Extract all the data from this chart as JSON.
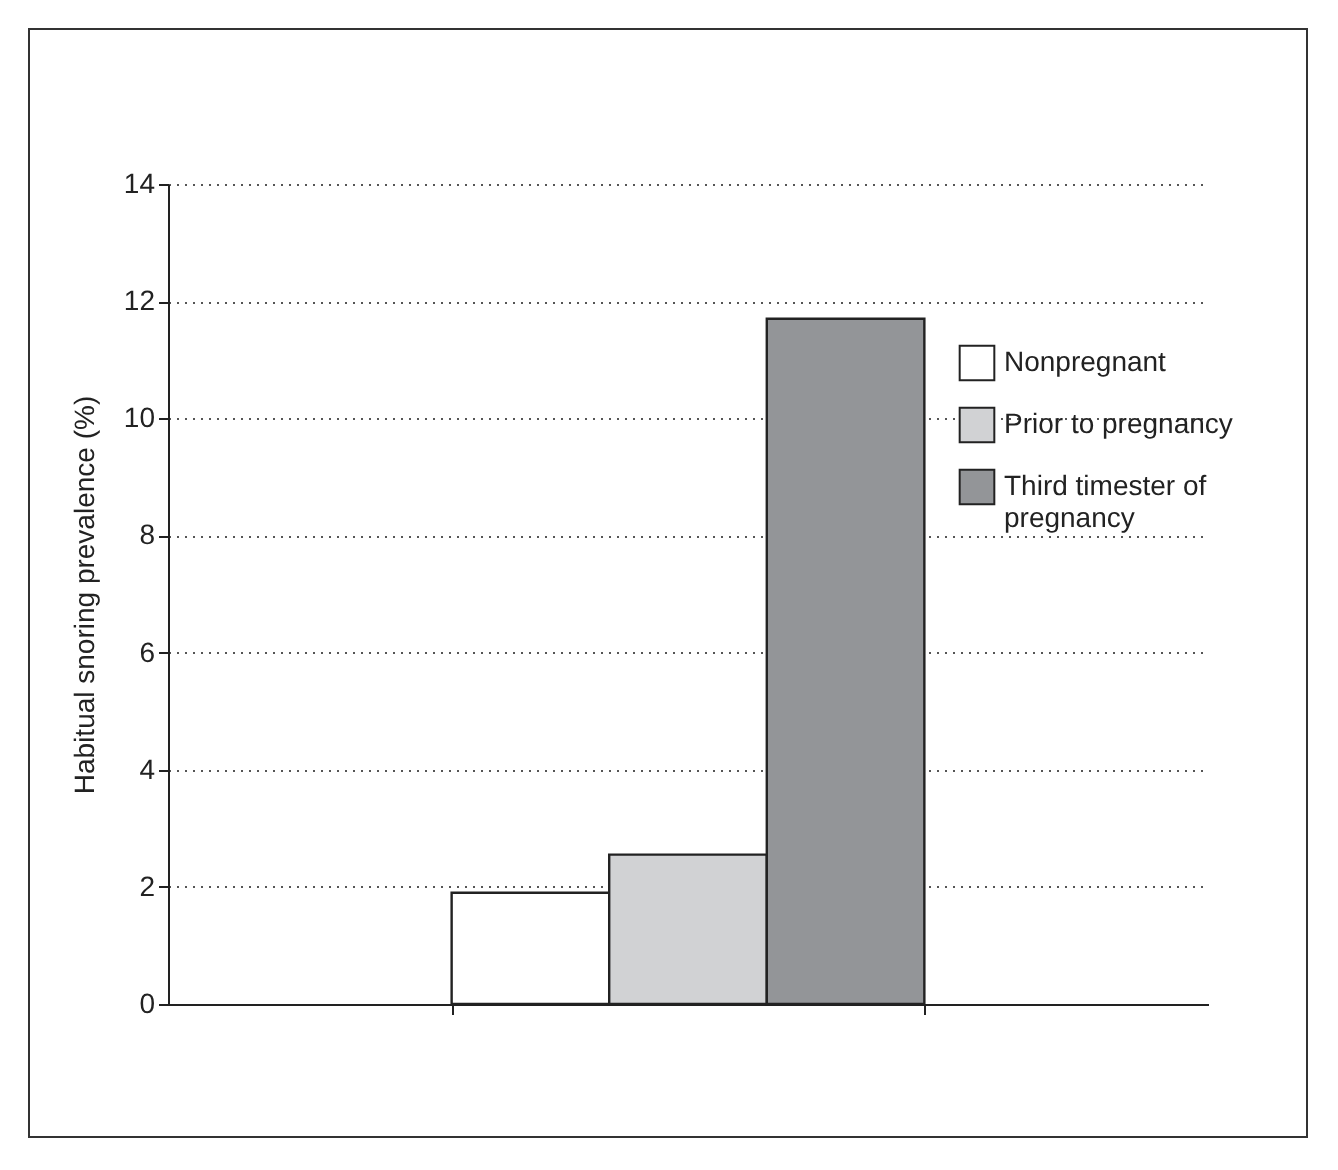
{
  "chart_data": {
    "type": "bar",
    "ylabel": "Habitual snoring prevalence (%)",
    "categories": [
      null
    ],
    "series": [
      {
        "name": "Nonpregnant",
        "color": "#ffffff",
        "values": [
          1.9
        ]
      },
      {
        "name": "Prior to pregnancy",
        "color": "#d1d2d4",
        "values": [
          2.55
        ]
      },
      {
        "name": "Third timester of pregnancy",
        "color": "#939598",
        "values": [
          11.7
        ]
      }
    ],
    "ylim": [
      0,
      14
    ],
    "yticks": [
      0,
      2,
      4,
      6,
      8,
      10,
      12,
      14
    ],
    "grid": "y",
    "legend": "top right"
  }
}
